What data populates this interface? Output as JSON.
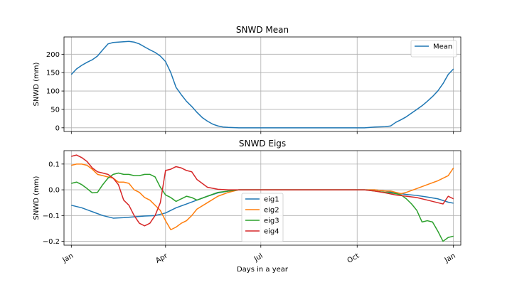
{
  "chart_data": [
    {
      "type": "line",
      "title": "SNWD Mean",
      "xlabel": "",
      "ylabel": "SNWD (mm)",
      "xlim": [
        -7,
        372
      ],
      "ylim": [
        -10,
        247
      ],
      "yticks": [
        0,
        50,
        100,
        150,
        200
      ],
      "xticks": [
        0,
        90,
        181,
        273,
        365
      ],
      "grid": true,
      "legend": "top-right",
      "series": [
        {
          "name": "Mean",
          "color": "#1f77b4",
          "x": [
            0,
            5,
            10,
            15,
            20,
            25,
            30,
            35,
            40,
            45,
            50,
            55,
            60,
            65,
            70,
            75,
            80,
            85,
            90,
            95,
            100,
            105,
            110,
            115,
            120,
            125,
            130,
            135,
            140,
            145,
            150,
            160,
            170,
            180,
            200,
            230,
            260,
            280,
            290,
            300,
            305,
            310,
            315,
            320,
            325,
            330,
            335,
            340,
            345,
            350,
            355,
            360,
            365
          ],
          "y": [
            145,
            160,
            170,
            178,
            185,
            195,
            212,
            228,
            232,
            233,
            234,
            235,
            233,
            228,
            220,
            212,
            205,
            195,
            180,
            150,
            110,
            90,
            72,
            58,
            42,
            28,
            18,
            10,
            5,
            2,
            1,
            0,
            0,
            0,
            0,
            0,
            0,
            0,
            2,
            3,
            5,
            15,
            22,
            30,
            40,
            50,
            60,
            72,
            85,
            100,
            120,
            145,
            160
          ]
        }
      ]
    },
    {
      "type": "line",
      "title": "SNWD Eigs",
      "xlabel": "Days in a year",
      "ylabel": "SNWD (mm)",
      "xlim": [
        -7,
        372
      ],
      "ylim": [
        -0.215,
        0.152
      ],
      "yticks": [
        -0.2,
        -0.1,
        0.0,
        0.1
      ],
      "yticklabels": [
        "−0.2",
        "−0.1",
        "0.0",
        "0.1"
      ],
      "xticks": [
        0,
        90,
        181,
        273,
        365
      ],
      "xticklabels": [
        "Jan",
        "Apr",
        "Jul",
        "Oct",
        "Jan"
      ],
      "grid": true,
      "legend": "lower-center",
      "series": [
        {
          "name": "eig1",
          "color": "#1f77b4",
          "x": [
            0,
            10,
            20,
            30,
            40,
            50,
            60,
            70,
            80,
            90,
            100,
            110,
            120,
            130,
            140,
            150,
            160,
            170,
            180,
            200,
            230,
            260,
            280,
            290,
            300,
            310,
            320,
            330,
            340,
            350,
            360,
            365
          ],
          "y": [
            -0.06,
            -0.07,
            -0.085,
            -0.1,
            -0.11,
            -0.108,
            -0.105,
            -0.102,
            -0.1,
            -0.09,
            -0.07,
            -0.055,
            -0.04,
            -0.025,
            -0.012,
            -0.005,
            0,
            0,
            0,
            0,
            0,
            0,
            0,
            0,
            -0.005,
            -0.012,
            -0.018,
            -0.022,
            -0.028,
            -0.035,
            -0.048,
            -0.052
          ]
        },
        {
          "name": "eig2",
          "color": "#ff7f0e",
          "x": [
            0,
            5,
            10,
            15,
            20,
            25,
            30,
            35,
            40,
            45,
            50,
            55,
            60,
            65,
            70,
            75,
            80,
            85,
            90,
            95,
            100,
            105,
            110,
            115,
            120,
            130,
            140,
            150,
            160,
            170,
            180,
            200,
            230,
            260,
            280,
            290,
            300,
            305,
            310,
            315,
            320,
            330,
            340,
            350,
            360,
            365
          ],
          "y": [
            0.095,
            0.1,
            0.1,
            0.095,
            0.08,
            0.06,
            0.055,
            0.05,
            0.045,
            0.03,
            0.03,
            0.025,
            0.0,
            -0.01,
            -0.03,
            -0.04,
            -0.06,
            -0.08,
            -0.12,
            -0.155,
            -0.145,
            -0.13,
            -0.12,
            -0.1,
            -0.075,
            -0.05,
            -0.025,
            -0.01,
            0,
            0,
            0,
            0,
            0,
            0,
            0,
            0,
            -0.005,
            -0.005,
            -0.01,
            -0.015,
            -0.01,
            0.005,
            0.02,
            0.035,
            0.055,
            0.085
          ]
        },
        {
          "name": "eig3",
          "color": "#2ca02c",
          "x": [
            0,
            5,
            10,
            15,
            20,
            25,
            30,
            35,
            40,
            45,
            50,
            55,
            60,
            65,
            70,
            75,
            80,
            85,
            90,
            95,
            100,
            105,
            110,
            115,
            120,
            130,
            140,
            150,
            160,
            170,
            180,
            200,
            230,
            260,
            280,
            290,
            300,
            305,
            310,
            315,
            320,
            325,
            330,
            335,
            340,
            345,
            350,
            355,
            360,
            365
          ],
          "y": [
            0.025,
            0.03,
            0.02,
            0.005,
            -0.012,
            -0.01,
            0.02,
            0.045,
            0.06,
            0.065,
            0.06,
            0.06,
            0.055,
            0.055,
            0.06,
            0.06,
            0.05,
            0.01,
            -0.02,
            -0.03,
            -0.045,
            -0.035,
            -0.025,
            -0.03,
            -0.04,
            -0.025,
            -0.01,
            -0.005,
            0,
            0,
            0,
            0,
            0,
            0,
            0,
            -0.005,
            -0.01,
            -0.012,
            -0.015,
            -0.02,
            -0.035,
            -0.055,
            -0.08,
            -0.125,
            -0.12,
            -0.125,
            -0.16,
            -0.2,
            -0.185,
            -0.18
          ]
        },
        {
          "name": "eig4",
          "color": "#d62728",
          "x": [
            0,
            5,
            10,
            15,
            20,
            25,
            30,
            35,
            40,
            45,
            50,
            55,
            60,
            65,
            70,
            75,
            80,
            85,
            90,
            95,
            100,
            105,
            110,
            115,
            120,
            130,
            140,
            150,
            160,
            170,
            180,
            200,
            230,
            260,
            280,
            290,
            300,
            310,
            320,
            330,
            340,
            350,
            355,
            360,
            365
          ],
          "y": [
            0.13,
            0.135,
            0.125,
            0.11,
            0.085,
            0.07,
            0.065,
            0.06,
            0.045,
            0.02,
            -0.04,
            -0.06,
            -0.1,
            -0.13,
            -0.14,
            -0.13,
            -0.1,
            -0.05,
            0.075,
            0.08,
            0.09,
            0.085,
            0.075,
            0.07,
            0.04,
            0.01,
            0.002,
            0,
            0,
            0,
            0,
            0,
            0,
            0,
            0,
            -0.005,
            -0.012,
            -0.02,
            -0.025,
            -0.03,
            -0.04,
            -0.05,
            -0.055,
            -0.025,
            -0.035
          ]
        }
      ]
    }
  ]
}
